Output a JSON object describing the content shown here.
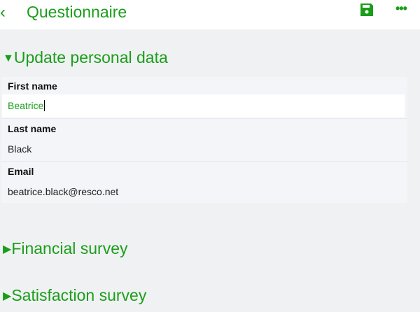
{
  "header": {
    "title": "Questionnaire",
    "back_icon": "chevron-left-icon",
    "save_icon": "save-icon",
    "more_icon": "more-icon",
    "more_label": "•••"
  },
  "accent": "#1a9e1a",
  "sections": [
    {
      "label": "Update personal data",
      "expanded": true,
      "arrow": "▼"
    },
    {
      "label": "Financial survey",
      "expanded": false,
      "arrow": "▶"
    },
    {
      "label": "Satisfaction survey",
      "expanded": false,
      "arrow": "▶"
    }
  ],
  "fields": [
    {
      "label": "First name",
      "value": "Beatrice"
    },
    {
      "label": "Last name",
      "value": "Black"
    },
    {
      "label": "Email",
      "value": "beatrice.black@resco.net"
    }
  ]
}
